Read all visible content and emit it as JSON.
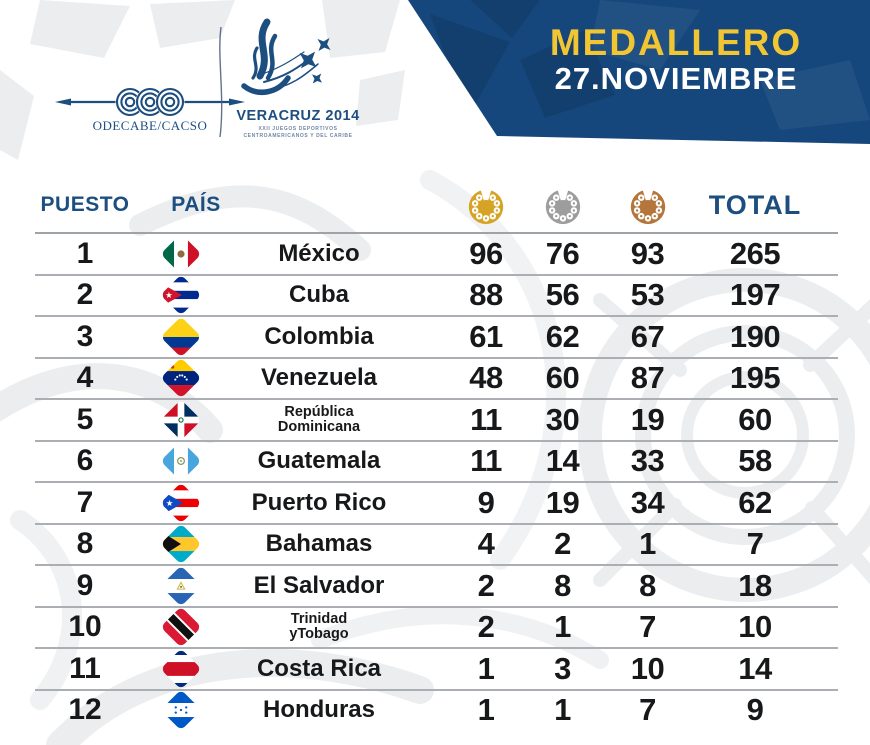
{
  "colors": {
    "navy": "#16477C",
    "navy_text": "#1D4E80",
    "yellow": "#F2C632",
    "gold": "#D7A326",
    "silver": "#9D9D9D",
    "bronze": "#B5763C",
    "ink": "#17181A",
    "line_gray": "#ABAEB3",
    "pattern_gray": "#EBEDEF"
  },
  "header": {
    "odecabe_label": "ODECABE/CACSO",
    "event_title": "VERACRUZ 2014",
    "event_sub1": "XXII JUEGOS DEPORTIVOS",
    "event_sub2": "CENTROAMERICANOS Y DEL CARIBE",
    "banner_title": "MEDALLERO",
    "banner_date": "27.NOVIEMBRE"
  },
  "table": {
    "col_position": "PUESTO",
    "col_country": "PAÍS",
    "col_total": "TOTAL",
    "medal_columns": [
      "gold-medal-icon",
      "silver-medal-icon",
      "bronze-medal-icon"
    ],
    "rows": [
      {
        "position": "1",
        "country": "México",
        "flag": "mx",
        "gold": "96",
        "silver": "76",
        "bronze": "93",
        "total": "265"
      },
      {
        "position": "2",
        "country": "Cuba",
        "flag": "cu",
        "gold": "88",
        "silver": "56",
        "bronze": "53",
        "total": "197"
      },
      {
        "position": "3",
        "country": "Colombia",
        "flag": "co",
        "gold": "61",
        "silver": "62",
        "bronze": "67",
        "total": "190"
      },
      {
        "position": "4",
        "country": "Venezuela",
        "flag": "ve",
        "gold": "48",
        "silver": "60",
        "bronze": "87",
        "total": "195"
      },
      {
        "position": "5",
        "country": "República\nDominicana",
        "flag": "do",
        "gold": "11",
        "silver": "30",
        "bronze": "19",
        "total": "60"
      },
      {
        "position": "6",
        "country": "Guatemala",
        "flag": "gt",
        "gold": "11",
        "silver": "14",
        "bronze": "33",
        "total": "58"
      },
      {
        "position": "7",
        "country": "Puerto Rico",
        "flag": "pr",
        "gold": "9",
        "silver": "19",
        "bronze": "34",
        "total": "62"
      },
      {
        "position": "8",
        "country": "Bahamas",
        "flag": "bs",
        "gold": "4",
        "silver": "2",
        "bronze": "1",
        "total": "7"
      },
      {
        "position": "9",
        "country": "El Salvador",
        "flag": "sv",
        "gold": "2",
        "silver": "8",
        "bronze": "8",
        "total": "18"
      },
      {
        "position": "10",
        "country": "Trinidad\nyTobago",
        "flag": "tt",
        "gold": "2",
        "silver": "1",
        "bronze": "7",
        "total": "10"
      },
      {
        "position": "11",
        "country": "Costa Rica",
        "flag": "cr",
        "gold": "1",
        "silver": "3",
        "bronze": "10",
        "total": "14"
      },
      {
        "position": "12",
        "country": "Honduras",
        "flag": "hn",
        "gold": "1",
        "silver": "1",
        "bronze": "7",
        "total": "9"
      }
    ]
  },
  "chart_data": {
    "type": "table",
    "title": "MEDALLERO",
    "subtitle": "27.NOVIEMBRE",
    "columns": [
      "Puesto",
      "País",
      "Oro",
      "Plata",
      "Bronce",
      "Total"
    ],
    "rows": [
      [
        1,
        "México",
        96,
        76,
        93,
        265
      ],
      [
        2,
        "Cuba",
        88,
        56,
        53,
        197
      ],
      [
        3,
        "Colombia",
        61,
        62,
        67,
        190
      ],
      [
        4,
        "Venezuela",
        48,
        60,
        87,
        195
      ],
      [
        5,
        "República Dominicana",
        11,
        30,
        19,
        60
      ],
      [
        6,
        "Guatemala",
        11,
        14,
        33,
        58
      ],
      [
        7,
        "Puerto Rico",
        9,
        19,
        34,
        62
      ],
      [
        8,
        "Bahamas",
        4,
        2,
        1,
        7
      ],
      [
        9,
        "El Salvador",
        2,
        8,
        8,
        18
      ],
      [
        10,
        "Trinidad y Tobago",
        2,
        1,
        7,
        10
      ],
      [
        11,
        "Costa Rica",
        1,
        3,
        10,
        14
      ],
      [
        12,
        "Honduras",
        1,
        1,
        7,
        9
      ]
    ]
  }
}
